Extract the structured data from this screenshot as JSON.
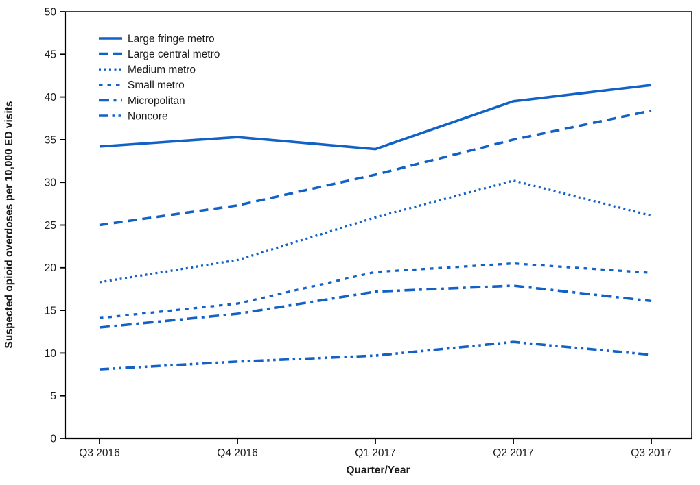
{
  "chart_data": {
    "type": "line",
    "title": "",
    "xlabel": "Quarter/Year",
    "ylabel": "Suspected opioid overdoses per 10,000 ED visits",
    "categories": [
      "Q3 2016",
      "Q4 2016",
      "Q1 2017",
      "Q2 2017",
      "Q3 2017"
    ],
    "ylim": [
      0,
      50
    ],
    "y_ticks": [
      0,
      5,
      10,
      15,
      20,
      25,
      30,
      35,
      40,
      45,
      50
    ],
    "grid": false,
    "legend_position": "top-left-inside",
    "series": [
      {
        "name": "Large fringe metro",
        "style": "solid",
        "values": [
          34.2,
          35.3,
          33.9,
          39.5,
          41.4
        ]
      },
      {
        "name": "Large central metro",
        "style": "dashed",
        "values": [
          25.0,
          27.3,
          30.9,
          35.0,
          38.4
        ]
      },
      {
        "name": "Medium metro",
        "style": "dotted",
        "values": [
          18.3,
          20.9,
          25.9,
          30.2,
          26.1
        ]
      },
      {
        "name": "Small metro",
        "style": "short-dash",
        "values": [
          14.1,
          15.8,
          19.5,
          20.5,
          19.4
        ]
      },
      {
        "name": "Micropolitan",
        "style": "dash-dot",
        "values": [
          13.0,
          14.6,
          17.2,
          17.9,
          16.1
        ]
      },
      {
        "name": "Noncore",
        "style": "dash-dot-dot",
        "values": [
          8.1,
          9.0,
          9.7,
          11.3,
          9.8
        ]
      }
    ],
    "colors": {
      "line": "#1261C6",
      "axis": "#000000",
      "text": "#1a1a1a"
    }
  }
}
